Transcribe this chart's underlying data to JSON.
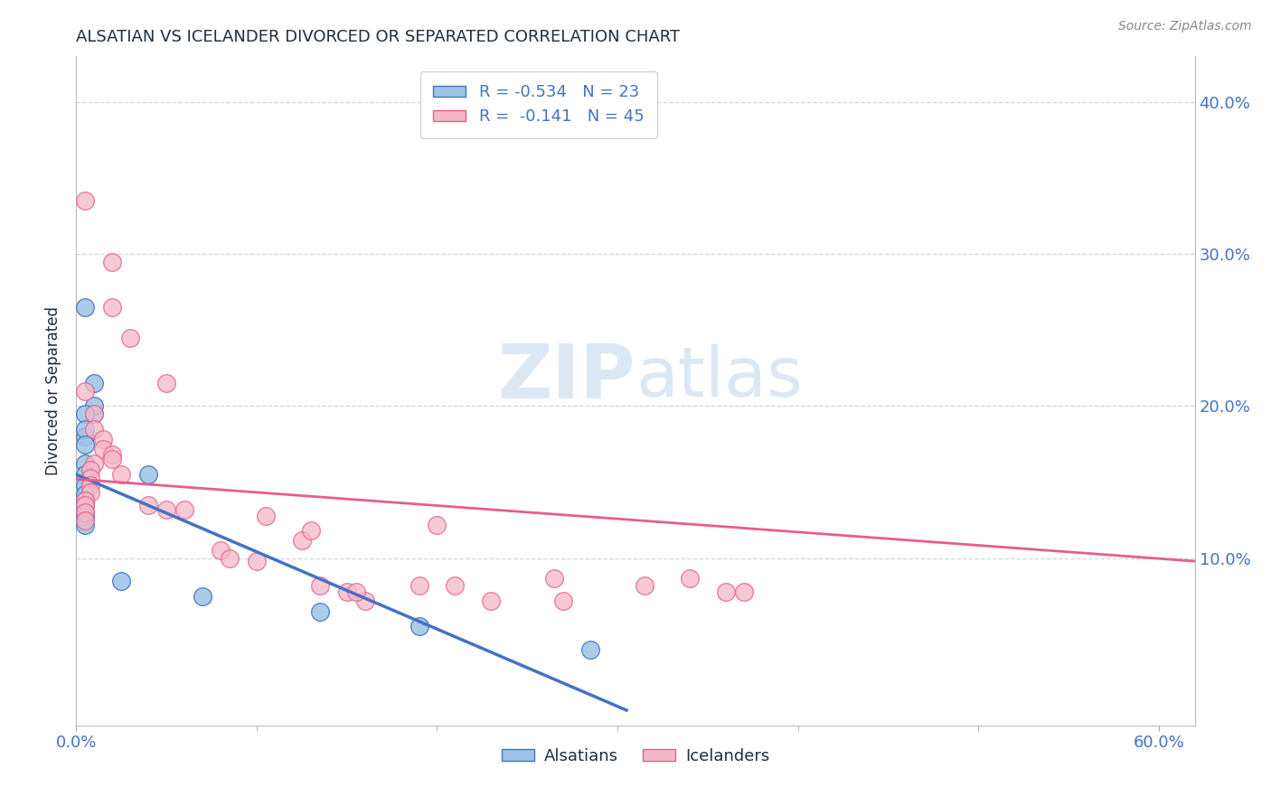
{
  "title": "ALSATIAN VS ICELANDER DIVORCED OR SEPARATED CORRELATION CHART",
  "source": "Source: ZipAtlas.com",
  "ylabel": "Divorced or Separated",
  "xlabel_ticks_vals": [
    0.0,
    0.6
  ],
  "xlabel_ticks_labels": [
    "0.0%",
    "60.0%"
  ],
  "yticks_right": [
    "10.0%",
    "20.0%",
    "30.0%",
    "40.0%"
  ],
  "xlim": [
    0.0,
    0.62
  ],
  "ylim": [
    -0.01,
    0.43
  ],
  "legend_line1": "R = -0.534   N = 23",
  "legend_line2": "R =  -0.141   N = 45",
  "alsatian_points": [
    [
      0.005,
      0.265
    ],
    [
      0.01,
      0.215
    ],
    [
      0.01,
      0.195
    ],
    [
      0.005,
      0.18
    ],
    [
      0.01,
      0.2
    ],
    [
      0.005,
      0.195
    ],
    [
      0.005,
      0.185
    ],
    [
      0.005,
      0.175
    ],
    [
      0.005,
      0.162
    ],
    [
      0.005,
      0.155
    ],
    [
      0.005,
      0.148
    ],
    [
      0.005,
      0.142
    ],
    [
      0.005,
      0.138
    ],
    [
      0.005,
      0.135
    ],
    [
      0.005,
      0.13
    ],
    [
      0.005,
      0.127
    ],
    [
      0.005,
      0.122
    ],
    [
      0.04,
      0.155
    ],
    [
      0.025,
      0.085
    ],
    [
      0.07,
      0.075
    ],
    [
      0.135,
      0.065
    ],
    [
      0.19,
      0.055
    ],
    [
      0.285,
      0.04
    ]
  ],
  "icelander_points": [
    [
      0.005,
      0.335
    ],
    [
      0.02,
      0.295
    ],
    [
      0.02,
      0.265
    ],
    [
      0.03,
      0.245
    ],
    [
      0.05,
      0.215
    ],
    [
      0.005,
      0.21
    ],
    [
      0.01,
      0.195
    ],
    [
      0.01,
      0.185
    ],
    [
      0.015,
      0.178
    ],
    [
      0.015,
      0.172
    ],
    [
      0.02,
      0.168
    ],
    [
      0.02,
      0.165
    ],
    [
      0.01,
      0.162
    ],
    [
      0.008,
      0.158
    ],
    [
      0.008,
      0.153
    ],
    [
      0.008,
      0.148
    ],
    [
      0.008,
      0.143
    ],
    [
      0.005,
      0.138
    ],
    [
      0.005,
      0.135
    ],
    [
      0.005,
      0.13
    ],
    [
      0.005,
      0.125
    ],
    [
      0.025,
      0.155
    ],
    [
      0.04,
      0.135
    ],
    [
      0.05,
      0.132
    ],
    [
      0.06,
      0.132
    ],
    [
      0.08,
      0.105
    ],
    [
      0.085,
      0.1
    ],
    [
      0.1,
      0.098
    ],
    [
      0.105,
      0.128
    ],
    [
      0.125,
      0.112
    ],
    [
      0.13,
      0.118
    ],
    [
      0.135,
      0.082
    ],
    [
      0.15,
      0.078
    ],
    [
      0.16,
      0.072
    ],
    [
      0.155,
      0.078
    ],
    [
      0.19,
      0.082
    ],
    [
      0.2,
      0.122
    ],
    [
      0.21,
      0.082
    ],
    [
      0.23,
      0.072
    ],
    [
      0.265,
      0.087
    ],
    [
      0.27,
      0.072
    ],
    [
      0.315,
      0.082
    ],
    [
      0.34,
      0.087
    ],
    [
      0.36,
      0.078
    ],
    [
      0.37,
      0.078
    ]
  ],
  "blue_line_x": [
    0.0,
    0.305
  ],
  "blue_line_y": [
    0.155,
    0.0
  ],
  "pink_line_x": [
    0.0,
    0.62
  ],
  "pink_line_y": [
    0.152,
    0.098
  ],
  "blue_color": "#4472c4",
  "pink_color": "#e85d8a",
  "blue_marker_face": "#9dc3e6",
  "blue_marker_edge": "#4472c4",
  "pink_marker_face": "#f4b8c8",
  "pink_marker_edge": "#e85d8a",
  "grid_color": "#c8d8ea",
  "watermark_color": "#dbe8f4",
  "background_color": "#ffffff",
  "title_color": "#1f2d3d",
  "axis_label_color": "#4472c4",
  "title_fontsize": 13,
  "legend_color": "#4472c4"
}
